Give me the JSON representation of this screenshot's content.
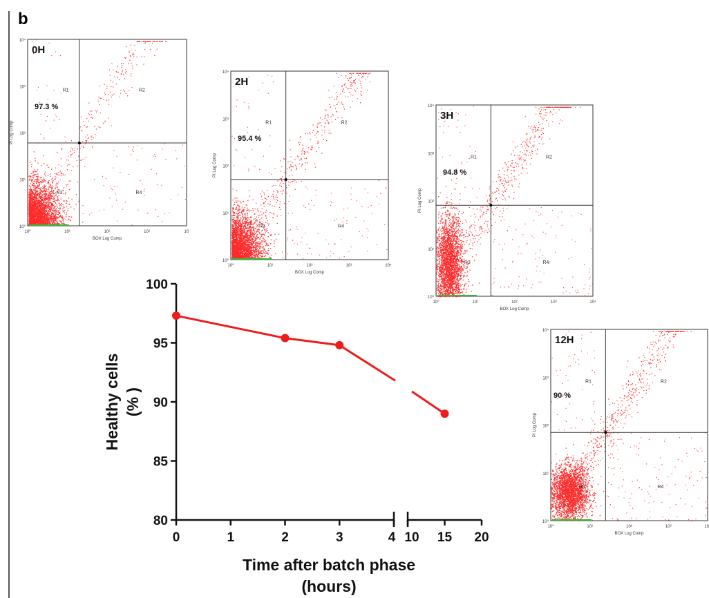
{
  "figure": {
    "panel_label": "b",
    "border_color": "#555555"
  },
  "colors": {
    "line": "#ee1c1c",
    "dot": "#ff2a2a",
    "axis": "#111111",
    "grid_line": "#333333",
    "green_base": "#33bb33"
  },
  "chart_data": [
    {
      "type": "line",
      "xlabel": "Time after batch phase (hours)",
      "xlabel_lines": [
        "Time after batch phase",
        "(hours)"
      ],
      "ylabel": "Healthy cells (%)",
      "ylabel_lines": [
        "Healthy cells",
        "(% )"
      ],
      "ylim": [
        80,
        100
      ],
      "yticks": [
        "80",
        "85",
        "90",
        "95",
        "100"
      ],
      "x_broken_axis": true,
      "x_segment_1": {
        "range": [
          0,
          4
        ],
        "ticks": [
          "0",
          "1",
          "2",
          "3",
          "4"
        ]
      },
      "x_segment_2": {
        "range": [
          10,
          20
        ],
        "ticks": [
          "10",
          "15",
          "20"
        ]
      },
      "series": [
        {
          "x": [
            0,
            2,
            3,
            15
          ],
          "values": [
            97.3,
            95.4,
            94.8,
            89
          ]
        }
      ],
      "markers": "filled-circle",
      "grid": false
    },
    {
      "type": "scatter",
      "title": "0H",
      "ylabel": "PI Log Comp",
      "xlabel": "BOX Log Comp",
      "scale": "log",
      "xlim": [
        1,
        10000
      ],
      "ylim": [
        1,
        10000
      ],
      "y_tick_labels": [
        "10⁰",
        "10¹",
        "10²",
        "10³",
        "10⁴"
      ],
      "x_tick_labels": [
        "10⁰",
        "10¹",
        "10²",
        "10³",
        "10"
      ],
      "region_labels": [
        "R1",
        "R2",
        "R3",
        "R4"
      ],
      "healthy_percent_label": "97.3 %",
      "gate": [
        20,
        60
      ]
    },
    {
      "type": "scatter",
      "title": "2H",
      "ylabel": "PI Log Comp",
      "xlabel": "BOX Log Comp",
      "scale": "log",
      "xlim": [
        1,
        10000
      ],
      "ylim": [
        1,
        10000
      ],
      "y_tick_labels": [
        "10⁰",
        "10¹",
        "10²",
        "10³",
        "10⁴"
      ],
      "x_tick_labels": [
        "10⁰",
        "10¹",
        "10²",
        "10³",
        "10⁴"
      ],
      "region_labels": [
        "R1",
        "R2",
        "R3",
        "R4"
      ],
      "healthy_percent_label": "95.4 %",
      "gate": [
        25,
        50
      ]
    },
    {
      "type": "scatter",
      "title": "3H",
      "ylabel": "PI Log Comp",
      "xlabel": "BOX Log Comp",
      "scale": "log",
      "xlim": [
        1,
        10000
      ],
      "ylim": [
        1,
        10000
      ],
      "y_tick_labels": [
        "10⁰",
        "10¹",
        "10²",
        "10³",
        "10⁴"
      ],
      "x_tick_labels": [
        "10⁰",
        "10¹",
        "10²",
        "10³",
        "10⁴"
      ],
      "region_labels": [
        "R1",
        "R2",
        "R3",
        "R4"
      ],
      "healthy_percent_label": "94.8 %",
      "gate": [
        25,
        80
      ]
    },
    {
      "type": "scatter",
      "title": "12H",
      "ylabel": "PI Log Comp",
      "xlabel": "BOX Log Comp",
      "scale": "log",
      "xlim": [
        1,
        10000
      ],
      "ylim": [
        1,
        10000
      ],
      "y_tick_labels": [
        "10⁰",
        "10¹",
        "10²",
        "10³",
        "10⁴"
      ],
      "x_tick_labels": [
        "10⁰",
        "10¹",
        "10²",
        "10³",
        "10⁴"
      ],
      "region_labels": [
        "R1",
        "R2",
        "R3",
        "R4"
      ],
      "healthy_percent_label": "90 %",
      "gate": [
        25,
        70
      ]
    }
  ]
}
